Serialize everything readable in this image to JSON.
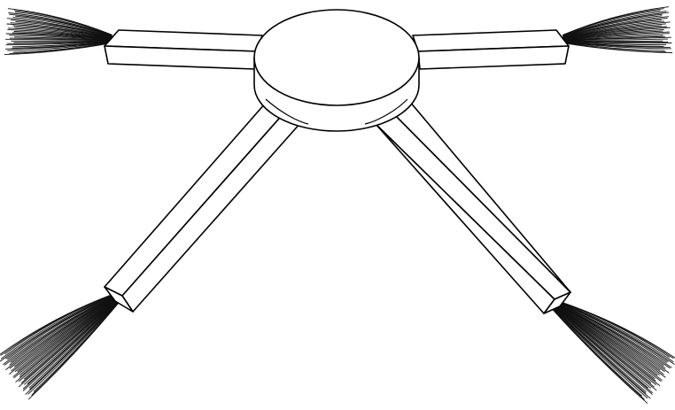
{
  "figure": {
    "subject": "side-brush",
    "arm_count": 4,
    "line_color": "#000000",
    "fill_color": "#ffffff",
    "bristle_color": "#111111"
  }
}
